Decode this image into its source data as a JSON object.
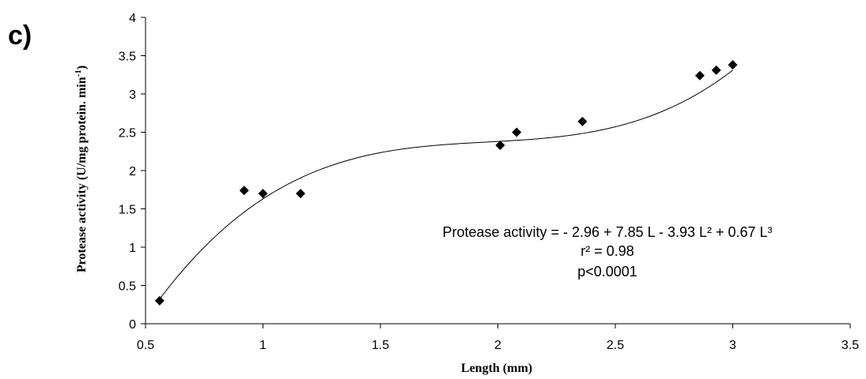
{
  "panel_label": "c)",
  "chart_data": {
    "type": "scatter",
    "xlabel": "Length (mm)",
    "ylabel": "Protease activity (U/mg protein. min-1)",
    "ylabel_main": "Protease activity (U/mg protein. min",
    "ylabel_sup": "-1",
    "ylabel_close": ")",
    "xlim": [
      0.5,
      3.5
    ],
    "ylim": [
      0,
      4
    ],
    "xticks": [
      0.5,
      1,
      1.5,
      2,
      2.5,
      3,
      3.5
    ],
    "xtick_labels": [
      "0.5",
      "1",
      "1.5",
      "2",
      "2.5",
      "3",
      "3.5"
    ],
    "yticks": [
      0,
      0.5,
      1,
      1.5,
      2,
      2.5,
      3,
      3.5,
      4
    ],
    "ytick_labels": [
      "0",
      "0.5",
      "1",
      "1.5",
      "2",
      "2.5",
      "3",
      "3.5",
      "4"
    ],
    "grid": false,
    "legend": "none",
    "marker": "diamond",
    "points": [
      {
        "x": 0.56,
        "y": 0.3
      },
      {
        "x": 0.92,
        "y": 1.74
      },
      {
        "x": 1.0,
        "y": 1.7
      },
      {
        "x": 1.16,
        "y": 1.7
      },
      {
        "x": 2.01,
        "y": 2.33
      },
      {
        "x": 2.08,
        "y": 2.5
      },
      {
        "x": 2.36,
        "y": 2.64
      },
      {
        "x": 2.86,
        "y": 3.24
      },
      {
        "x": 2.93,
        "y": 3.31
      },
      {
        "x": 3.0,
        "y": 3.38
      }
    ],
    "fit": {
      "type": "polynomial",
      "coefficients": [
        -2.96,
        7.85,
        -3.93,
        0.67
      ],
      "x_range": [
        0.56,
        3.0
      ]
    },
    "annotations": {
      "equation_text": "Protease activity = - 2.96 + 7.85 L - 3.93 L² + 0.67 L³",
      "r2_text": "r² = 0.98",
      "p_text": "p<0.0001"
    }
  }
}
